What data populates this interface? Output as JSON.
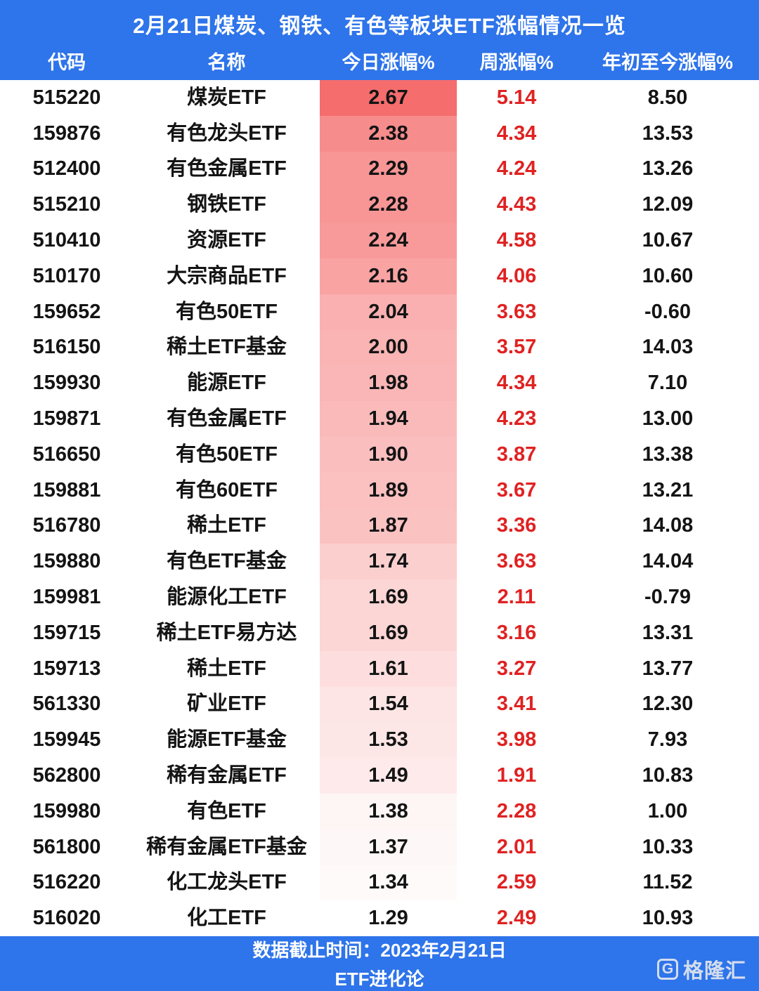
{
  "chart_data": {
    "type": "table",
    "title": "2月21日煤炭、钢铁、有色等板块ETF涨幅情况一览",
    "columns": [
      "代码",
      "名称",
      "今日涨幅%",
      "周涨幅%",
      "年初至今涨幅%"
    ],
    "rows": [
      {
        "code": "515220",
        "name": "煤炭ETF",
        "today": "2.67",
        "week": "5.14",
        "ytd": "8.50"
      },
      {
        "code": "159876",
        "name": "有色龙头ETF",
        "today": "2.38",
        "week": "4.34",
        "ytd": "13.53"
      },
      {
        "code": "512400",
        "name": "有色金属ETF",
        "today": "2.29",
        "week": "4.24",
        "ytd": "13.26"
      },
      {
        "code": "515210",
        "name": "钢铁ETF",
        "today": "2.28",
        "week": "4.43",
        "ytd": "12.09"
      },
      {
        "code": "510410",
        "name": "资源ETF",
        "today": "2.24",
        "week": "4.58",
        "ytd": "10.67"
      },
      {
        "code": "510170",
        "name": "大宗商品ETF",
        "today": "2.16",
        "week": "4.06",
        "ytd": "10.60"
      },
      {
        "code": "159652",
        "name": "有色50ETF",
        "today": "2.04",
        "week": "3.63",
        "ytd": "-0.60"
      },
      {
        "code": "516150",
        "name": "稀土ETF基金",
        "today": "2.00",
        "week": "3.57",
        "ytd": "14.03"
      },
      {
        "code": "159930",
        "name": "能源ETF",
        "today": "1.98",
        "week": "4.34",
        "ytd": "7.10"
      },
      {
        "code": "159871",
        "name": "有色金属ETF",
        "today": "1.94",
        "week": "4.23",
        "ytd": "13.00"
      },
      {
        "code": "516650",
        "name": "有色50ETF",
        "today": "1.90",
        "week": "3.87",
        "ytd": "13.38"
      },
      {
        "code": "159881",
        "name": "有色60ETF",
        "today": "1.89",
        "week": "3.67",
        "ytd": "13.21"
      },
      {
        "code": "516780",
        "name": "稀土ETF",
        "today": "1.87",
        "week": "3.36",
        "ytd": "14.08"
      },
      {
        "code": "159880",
        "name": "有色ETF基金",
        "today": "1.74",
        "week": "3.63",
        "ytd": "14.04"
      },
      {
        "code": "159981",
        "name": "能源化工ETF",
        "today": "1.69",
        "week": "2.11",
        "ytd": "-0.79"
      },
      {
        "code": "159715",
        "name": "稀土ETF易方达",
        "today": "1.69",
        "week": "3.16",
        "ytd": "13.31"
      },
      {
        "code": "159713",
        "name": "稀土ETF",
        "today": "1.61",
        "week": "3.27",
        "ytd": "13.77"
      },
      {
        "code": "561330",
        "name": "矿业ETF",
        "today": "1.54",
        "week": "3.41",
        "ytd": "12.30"
      },
      {
        "code": "159945",
        "name": "能源ETF基金",
        "today": "1.53",
        "week": "3.98",
        "ytd": "7.93"
      },
      {
        "code": "562800",
        "name": "稀有金属ETF",
        "today": "1.49",
        "week": "1.91",
        "ytd": "10.83"
      },
      {
        "code": "159980",
        "name": "有色ETF",
        "today": "1.38",
        "week": "2.28",
        "ytd": "1.00"
      },
      {
        "code": "561800",
        "name": "稀有金属ETF基金",
        "today": "1.37",
        "week": "2.01",
        "ytd": "10.33"
      },
      {
        "code": "516220",
        "name": "化工龙头ETF",
        "today": "1.34",
        "week": "2.59",
        "ytd": "11.52"
      },
      {
        "code": "516020",
        "name": "化工ETF",
        "today": "1.29",
        "week": "2.49",
        "ytd": "10.93"
      }
    ],
    "heatmap": {
      "column": "今日涨幅%",
      "min_value": 1.29,
      "max_value": 2.67,
      "min_color": "#FFFFFF",
      "max_color": "#F56D6D"
    },
    "legend_position": "none"
  },
  "colors": {
    "header_bg": "#2E74EA",
    "header_text": "#FFFFFF",
    "body_text": "#141414",
    "week_column_text": "#E02222",
    "heat_max": "#F56D6D"
  },
  "footer": {
    "note": "数据截止时间：2023年2月21日",
    "source": "ETF进化论",
    "logo": {
      "glyph": "G",
      "text": "格隆汇"
    }
  }
}
